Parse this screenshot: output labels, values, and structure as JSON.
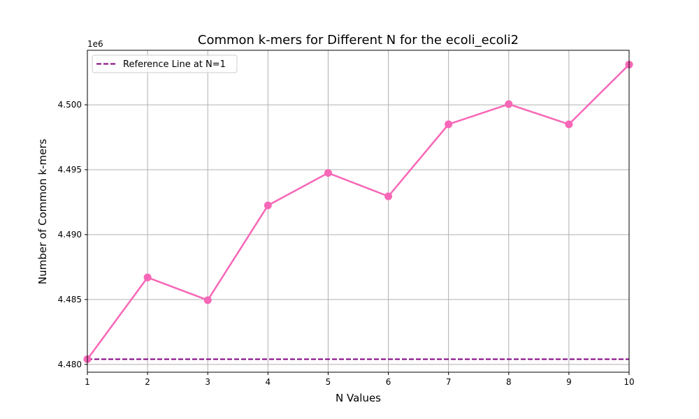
{
  "chart_data": {
    "type": "line",
    "title": "Common k-mers for Different N for the ecoli_ecoli2",
    "xlabel": "N Values",
    "ylabel": "Number of Common k-mers",
    "y_scale_label": "1e6",
    "x": [
      1,
      2,
      3,
      4,
      5,
      6,
      7,
      8,
      9,
      10
    ],
    "series": [
      {
        "values": [
          4480400,
          4486700,
          4484950,
          4492250,
          4494750,
          4492950,
          4498500,
          4500050,
          4498500,
          4503100
        ],
        "color": "#f767b7",
        "marker": "circle"
      }
    ],
    "reference_line": {
      "label": "Reference Line at N=1",
      "value": 4480400,
      "color": "#800080",
      "style": "dashed"
    },
    "xlim": [
      1,
      10
    ],
    "ylim": [
      4479400,
      4504200
    ],
    "x_ticks": [
      "1",
      "2",
      "3",
      "4",
      "5",
      "6",
      "7",
      "8",
      "9",
      "10"
    ],
    "y_ticks": [
      {
        "value": 4480000,
        "label": "4.480"
      },
      {
        "value": 4485000,
        "label": "4.485"
      },
      {
        "value": 4490000,
        "label": "4.490"
      },
      {
        "value": 4495000,
        "label": "4.495"
      },
      {
        "value": 4500000,
        "label": "4.500"
      }
    ],
    "grid": true,
    "legend_position": "top-left"
  }
}
